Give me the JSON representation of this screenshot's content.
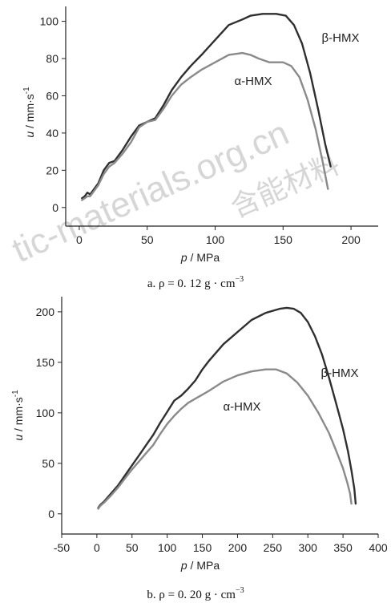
{
  "watermark": [
    "tic-materials.org.cn",
    "含能材料"
  ],
  "chart_data": [
    {
      "type": "line",
      "caption": "a.  ρ = 0. 12  g · cm",
      "caption_sup": "−3",
      "xlabel_italic": "p",
      "xlabel_rest": " / MPa",
      "ylabel_italic": "u",
      "ylabel_rest": " / mm·s",
      "ylabel_sup": "-1",
      "xlim": [
        -10,
        220
      ],
      "ylim": [
        -10,
        108
      ],
      "xticks": [
        0,
        50,
        100,
        150,
        200
      ],
      "yticks": [
        0,
        20,
        40,
        60,
        80,
        100
      ],
      "series": [
        {
          "name": "β-HMX",
          "color": "#2f2f2f",
          "x": [
            2,
            4,
            6,
            8,
            10,
            14,
            18,
            22,
            26,
            32,
            38,
            44,
            50,
            56,
            62,
            68,
            75,
            82,
            90,
            100,
            110,
            120,
            126,
            135,
            145,
            152,
            158,
            164,
            170,
            176,
            181,
            185
          ],
          "y": [
            5,
            6,
            8,
            7,
            9,
            13,
            20,
            24,
            25,
            31,
            38,
            44,
            46,
            48,
            55,
            63,
            70,
            76,
            82,
            90,
            98,
            101,
            103,
            104,
            104,
            103,
            98,
            88,
            72,
            52,
            34,
            22
          ]
        },
        {
          "name": "α-HMX",
          "color": "#8a8a8a",
          "x": [
            2,
            4,
            6,
            8,
            10,
            14,
            18,
            22,
            26,
            32,
            38,
            44,
            50,
            56,
            62,
            68,
            75,
            82,
            90,
            100,
            110,
            120,
            126,
            132,
            140,
            150,
            156,
            162,
            168,
            174,
            179,
            183
          ],
          "y": [
            4,
            5,
            6,
            6,
            8,
            12,
            18,
            22,
            24,
            29,
            35,
            43,
            46,
            47,
            53,
            60,
            66,
            70,
            74,
            78,
            82,
            83,
            82,
            80,
            78,
            78,
            76,
            70,
            58,
            42,
            25,
            10
          ]
        }
      ]
    },
    {
      "type": "line",
      "caption": "b.  ρ = 0. 20  g · cm",
      "caption_sup": "−3",
      "xlabel_italic": "p",
      "xlabel_rest": " / MPa",
      "ylabel_italic": "u",
      "ylabel_rest": " / mm·s",
      "ylabel_sup": "-1",
      "xlim": [
        -50,
        400
      ],
      "ylim": [
        -20,
        215
      ],
      "xticks": [
        -50,
        0,
        50,
        100,
        150,
        200,
        250,
        300,
        350,
        400
      ],
      "yticks": [
        0,
        50,
        100,
        150,
        200
      ],
      "series": [
        {
          "name": "β-HMX",
          "color": "#2f2f2f",
          "x": [
            2,
            5,
            10,
            20,
            30,
            40,
            50,
            60,
            70,
            80,
            90,
            100,
            110,
            120,
            130,
            140,
            150,
            160,
            180,
            200,
            220,
            240,
            260,
            270,
            280,
            290,
            300,
            310,
            320,
            330,
            340,
            350,
            357,
            362,
            366,
            368
          ],
          "y": [
            6,
            9,
            12,
            20,
            28,
            38,
            48,
            58,
            68,
            78,
            90,
            101,
            112,
            117,
            124,
            132,
            143,
            152,
            168,
            180,
            192,
            199,
            203,
            204,
            203,
            199,
            190,
            176,
            158,
            135,
            110,
            84,
            62,
            43,
            25,
            10
          ]
        },
        {
          "name": "α-HMX",
          "color": "#8a8a8a",
          "x": [
            2,
            5,
            10,
            20,
            30,
            40,
            50,
            60,
            70,
            80,
            90,
            100,
            110,
            120,
            130,
            140,
            150,
            160,
            180,
            200,
            220,
            240,
            255,
            270,
            285,
            300,
            315,
            330,
            340,
            350,
            356,
            360,
            362
          ],
          "y": [
            5,
            8,
            11,
            18,
            26,
            35,
            44,
            52,
            60,
            68,
            79,
            89,
            97,
            104,
            110,
            114,
            118,
            122,
            131,
            137,
            141,
            143,
            143,
            139,
            130,
            117,
            100,
            80,
            63,
            45,
            31,
            20,
            10
          ]
        }
      ]
    }
  ]
}
